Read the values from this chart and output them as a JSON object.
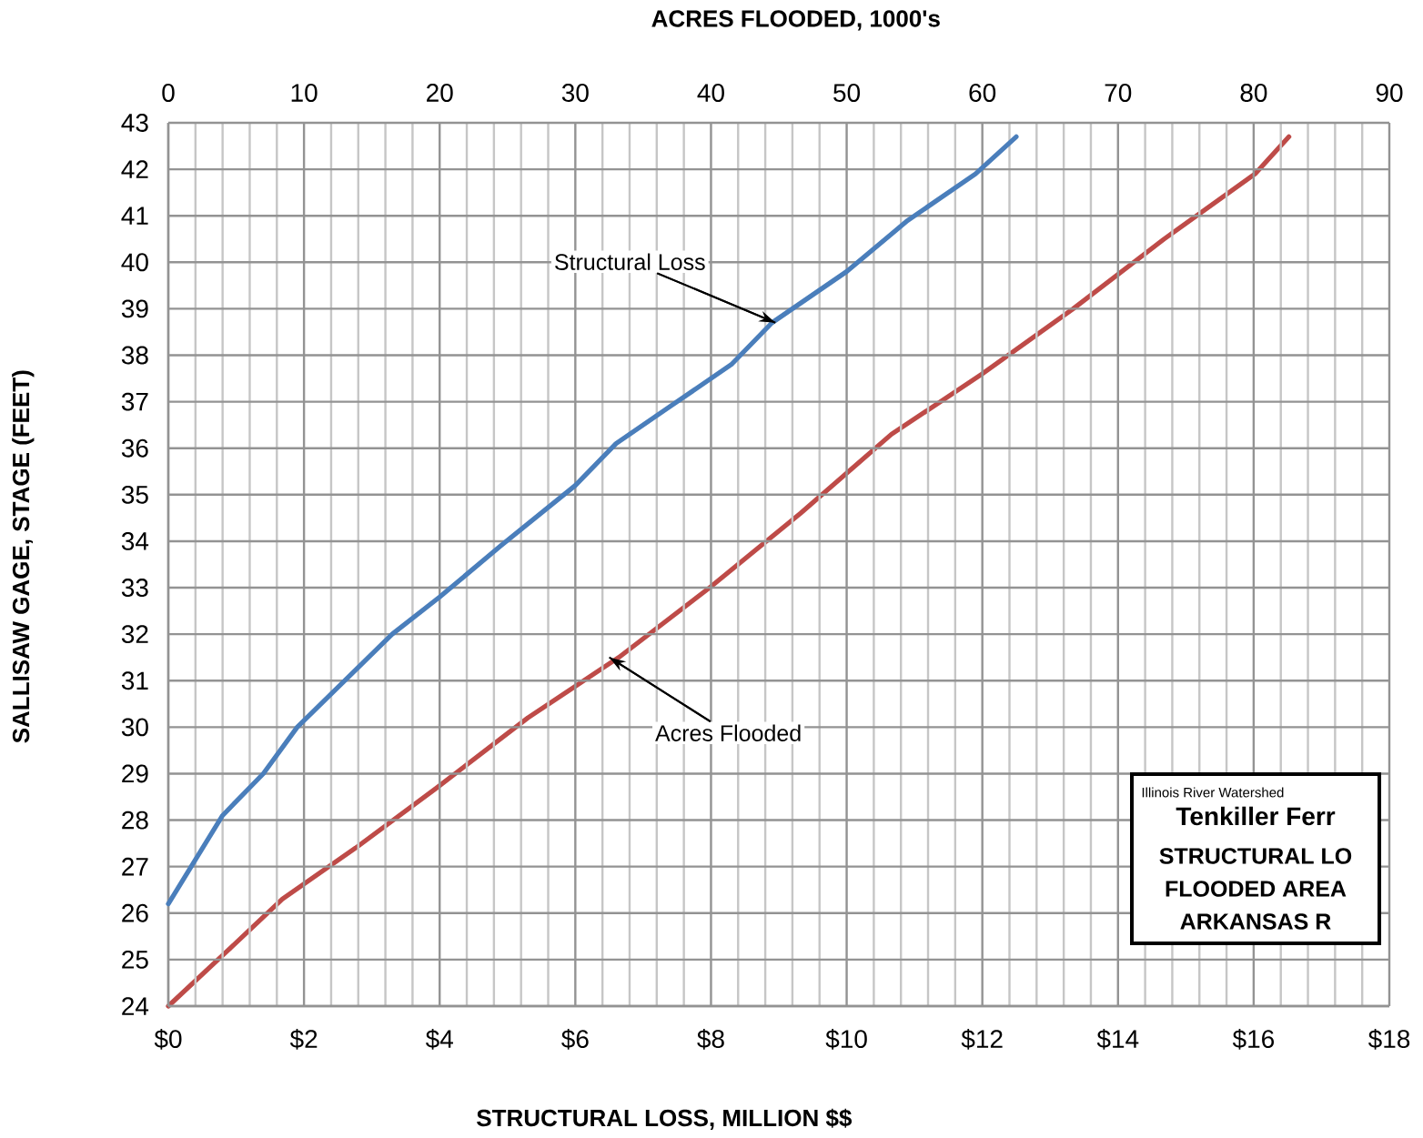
{
  "chart_data": {
    "type": "line",
    "xlabel": "STRUCTURAL LOSS, MILLION $$",
    "x2label": "ACRES FLOODED, 1000's",
    "ylabel": "SALLISAW GAGE, STAGE (FEET)",
    "xlim": [
      0,
      18
    ],
    "x2lim": [
      0,
      90
    ],
    "ylim": [
      24,
      43
    ],
    "xticks": [
      {
        "value": 0,
        "label": "$0"
      },
      {
        "value": 2,
        "label": "$2"
      },
      {
        "value": 4,
        "label": "$4"
      },
      {
        "value": 6,
        "label": "$6"
      },
      {
        "value": 8,
        "label": "$8"
      },
      {
        "value": 10,
        "label": "$10"
      },
      {
        "value": 12,
        "label": "$12"
      },
      {
        "value": 14,
        "label": "$14"
      },
      {
        "value": 16,
        "label": "$16"
      },
      {
        "value": 18,
        "label": "$18"
      }
    ],
    "x2ticks": [
      0,
      10,
      20,
      30,
      40,
      50,
      60,
      70,
      80,
      90
    ],
    "yticks": [
      24,
      25,
      26,
      27,
      28,
      29,
      30,
      31,
      32,
      33,
      34,
      35,
      36,
      37,
      38,
      39,
      40,
      41,
      42,
      43
    ],
    "grid": true,
    "marker": "none",
    "line_style": "solid",
    "series": [
      {
        "color": "#4a7ebb",
        "x": [
          0,
          0.8,
          1.4,
          1.9,
          2.6,
          3.3,
          4.0,
          4.9,
          6.0,
          6.6,
          7.4,
          8.3,
          8.9,
          10.0,
          10.9,
          11.9,
          12.5
        ],
        "values": [
          26.2,
          28.1,
          29.0,
          30.0,
          31.0,
          32.0,
          32.8,
          33.9,
          35.2,
          36.1,
          36.9,
          37.8,
          38.7,
          39.8,
          40.9,
          41.9,
          42.7
        ]
      },
      {
        "color": "#be4b48",
        "axis": "x2",
        "x": [
          0,
          4.4,
          8.4,
          13.8,
          19.8,
          26.5,
          33.2,
          39.9,
          46.6,
          53.3,
          60.0,
          66.7,
          73.4,
          80.1,
          82.6
        ],
        "values": [
          24.0,
          25.2,
          26.3,
          27.4,
          28.7,
          30.2,
          31.5,
          33.0,
          34.6,
          36.3,
          37.6,
          39.0,
          40.5,
          41.9,
          42.7
        ]
      }
    ],
    "annotations": [
      {
        "text": "Structural Loss",
        "x": 8.95,
        "y": 38.7
      },
      {
        "text": "Acres Flooded",
        "x": 6.5,
        "y": 31.5
      },
      "Illinois River Watershed",
      "Tenkiller Ferr",
      "STRUCTURAL LO",
      "FLOODED AREA",
      "ARKANSAS R"
    ]
  }
}
